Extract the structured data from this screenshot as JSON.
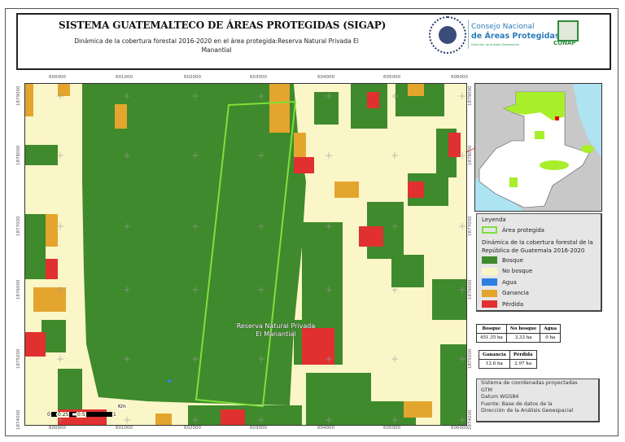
{
  "header": {
    "title": "SISTEMA GUATEMALTECO DE ÁREAS PROTEGIDAS  (SIGAP)",
    "subtitle": "Dinámica de la cobertura forestal 2016-2020 en el área protegida:Reserva Natural Privada El Manantial",
    "logo_seal_text": "GOBIERNO DE LA REPÚBLICA GUATEMALA",
    "conap_line1": "Consejo Nacional",
    "conap_line2": "de Áreas Protegidas",
    "conap_line3": "Dirección de Análisis Geoespacial",
    "conap_badge": "CONAP"
  },
  "map": {
    "x_ticks": [
      "600000",
      "601000",
      "602000",
      "603000",
      "604000",
      "605000",
      "606000"
    ],
    "y_ticks": [
      "1879000",
      "1878000",
      "1877000",
      "1876000",
      "1875000",
      "1874000"
    ],
    "area_label": "Reserva Natural Privada El Manantial",
    "north_label": "N",
    "scale": {
      "labels": [
        "0",
        "0.25",
        "0.5",
        "1"
      ],
      "unit": "Km"
    }
  },
  "colors": {
    "bosque": "#3f8a2c",
    "no_bosque": "#fbf6c8",
    "agua": "#2f7fe0",
    "ganancia": "#e3a52e",
    "perdida": "#e03030",
    "area_protegida": "#7ee03a"
  },
  "legend": {
    "title": "Leyenda",
    "area": "Área protegida",
    "description": "Dinámica de la cobertura forestal de la República de Guatemala 2016-2020",
    "items": [
      {
        "label": "Bosque",
        "color": "#3f8a2c"
      },
      {
        "label": "No bosque",
        "color": "#fbf6c8"
      },
      {
        "label": "Agua",
        "color": "#2f7fe0"
      },
      {
        "label": "Ganancia",
        "color": "#e3a52e"
      },
      {
        "label": "Pérdida",
        "color": "#e03030"
      }
    ]
  },
  "stats": {
    "table1": {
      "headers": [
        "Bosque",
        "No bosque",
        "Agua"
      ],
      "values": [
        "451.35 ha",
        "3.33 ha",
        "0 ha"
      ]
    },
    "table2": {
      "headers": [
        "Ganancia",
        "Pérdida"
      ],
      "values": [
        "12.6 ha",
        "2.97 ha"
      ]
    }
  },
  "info": {
    "lines": [
      "Sistema de coordenadas proyectadas",
      "GTM",
      "Datum WGS84",
      "Fuente: Base de datos de la",
      "Dirección de la Análisis Geoespacial"
    ]
  }
}
